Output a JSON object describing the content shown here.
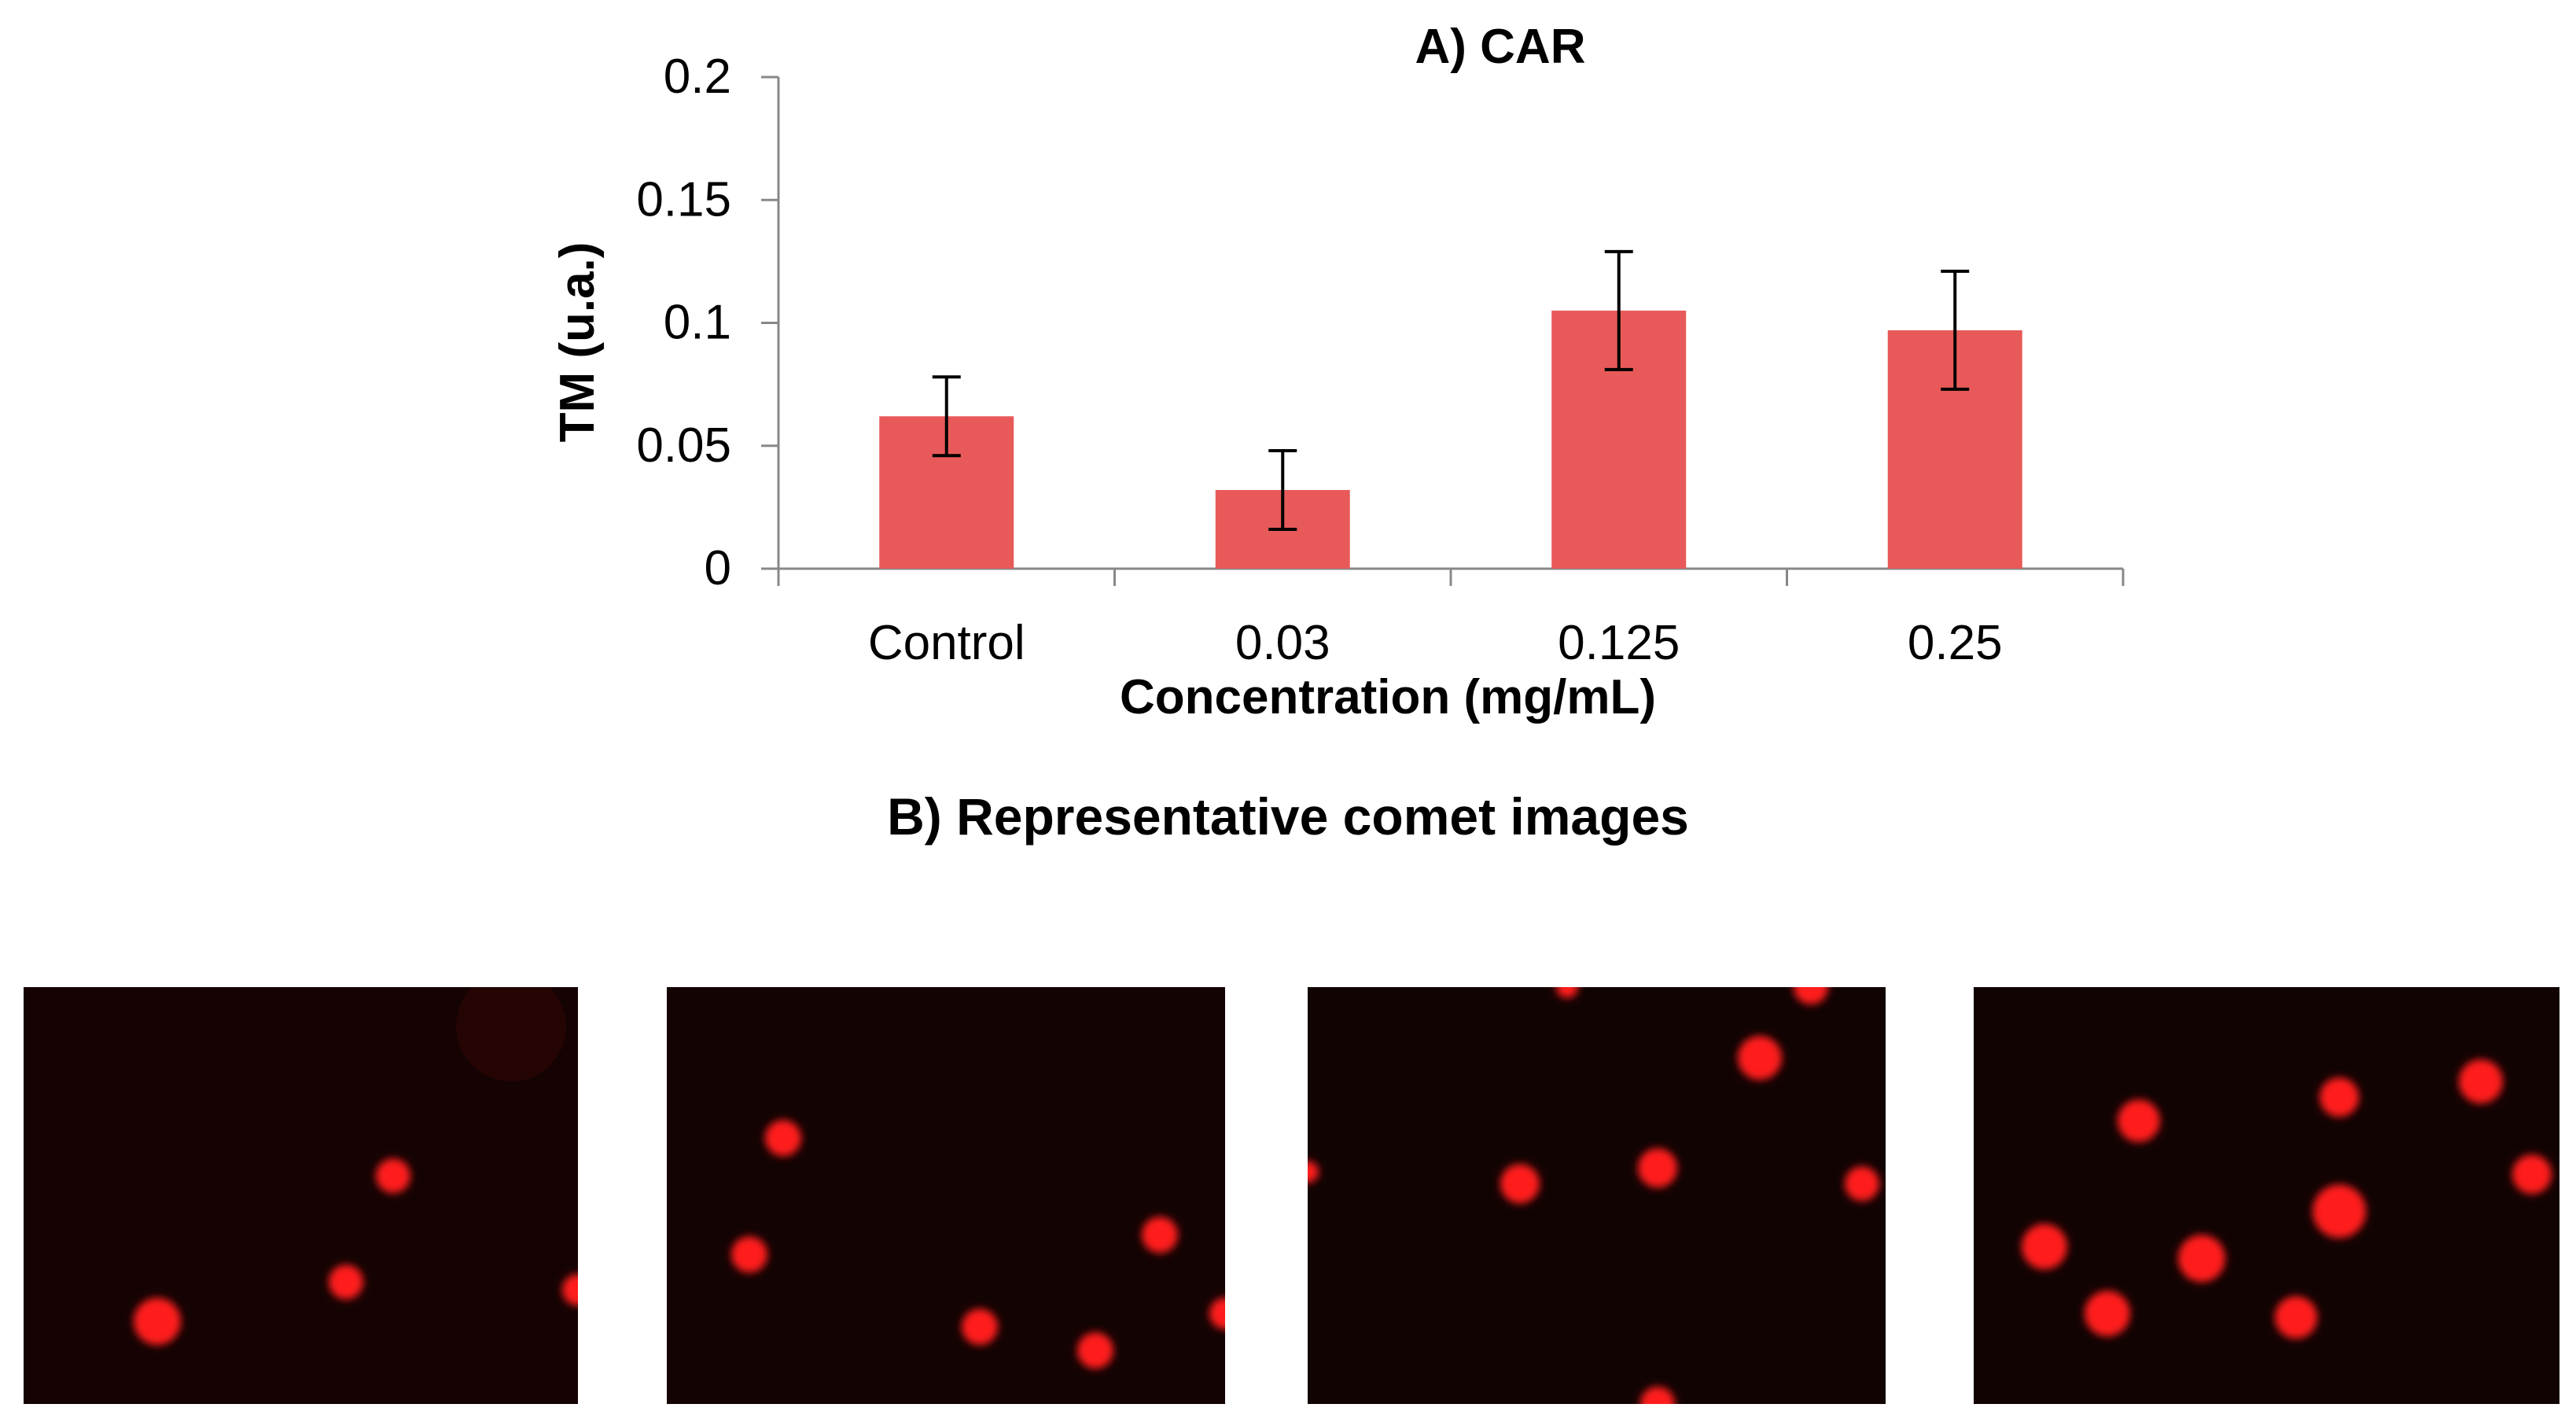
{
  "chart_data": {
    "type": "bar",
    "title": "A) CAR",
    "xlabel": "Concentration (mg/mL)",
    "ylabel": "TM (u.a.)",
    "categories": [
      "Control",
      "0.03",
      "0.125",
      "0.25"
    ],
    "values": [
      0.062,
      0.032,
      0.105,
      0.097
    ],
    "errors": [
      0.016,
      0.016,
      0.024,
      0.024
    ],
    "ylim": [
      0,
      0.2
    ],
    "yticks": [
      0,
      0.05,
      0.1,
      0.15,
      0.2
    ],
    "ytick_labels": [
      "0",
      "0.05",
      "0.1",
      "0.15",
      "0.2"
    ],
    "grid": false,
    "bar_color": "#E85A5A"
  },
  "section_b": {
    "title": "B) Representative comet images"
  },
  "colors": {
    "panel_background": "#140303",
    "comet_core": "#FF1A1A",
    "comet_glow": "#CC0000"
  }
}
